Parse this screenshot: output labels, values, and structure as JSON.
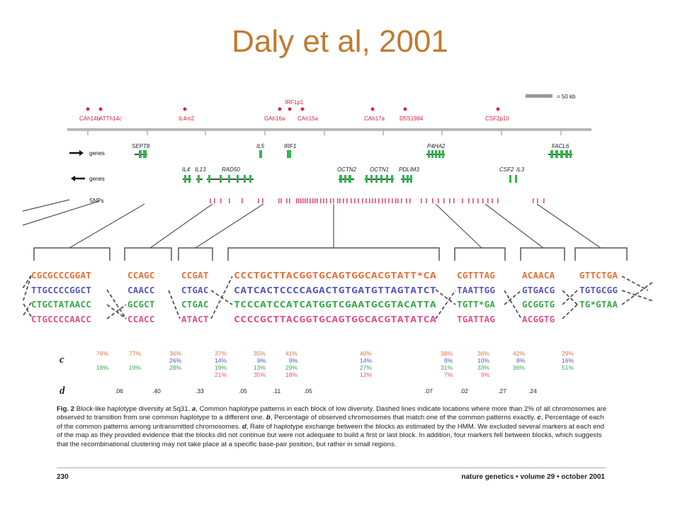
{
  "slide_title": "Daly et al, 2001",
  "scale_label": "= 50 kb",
  "markers": [
    "CAh14b",
    "ATTh14c",
    "IL4m2",
    "IRF1p1",
    "GAh16a",
    "CAh15a",
    "CAh17a",
    "D5S1984",
    "CSF2p10"
  ],
  "track_labels": {
    "forward": "genes",
    "reverse": "genes",
    "snps": "SNPs"
  },
  "forward_genes": [
    "SEPT8",
    "IL5",
    "IRF1",
    "P4HA2",
    "FACL6"
  ],
  "reverse_genes": [
    "IL4",
    "IL13",
    "RAD50",
    "OCTN2",
    "OCTN1",
    "PDLIM3",
    "CSF2",
    "IL3"
  ],
  "blocks": [
    {
      "seqs": [
        "CGCGCCCGGAT",
        "TTGCCCCGGCT",
        "CTGCTATAACC",
        "CTGCCCCAACC"
      ],
      "c": [
        "76%",
        "",
        "18%",
        ""
      ],
      "d": ".06"
    },
    {
      "seqs": [
        "CCAGC",
        "CAACC",
        "GCGCT",
        "CCACC"
      ],
      "c": [
        "77%",
        "",
        "19%",
        ""
      ],
      "d": ".40"
    },
    {
      "seqs": [
        "CCGAT",
        "CTGAC",
        "CTGAC",
        "ATACT"
      ],
      "c": [
        "36%",
        "26%",
        "28%",
        ""
      ],
      "d": ".33"
    },
    {
      "seqs": [
        "CCCTGCTTACGGTGCAGTGGCACGTATT*CA",
        "CATCACTCCCCAGACTGTGATGTTAGTATCT",
        "TCCCATCCATCATGGTCGAATGCGTACATTA",
        "CCCCGCTTACGGTGCAGTGGCACGTATATCA"
      ],
      "c": [
        "37%",
        "14%",
        "19%",
        "21%"
      ],
      "d": ".05"
    },
    {
      "seqs": [
        "CGTTTAG",
        "TAATTGG",
        "TGTT*GA",
        "TGATTAG"
      ],
      "c": [
        "35%",
        "9%",
        "13%",
        "35%"
      ],
      "d": ".11"
    },
    {
      "seqs": [
        "ACAACA",
        "GTGACG",
        "GCGGTG",
        "ACGGTG"
      ],
      "c": [
        "41%",
        "9%",
        "29%",
        "18%"
      ],
      "d": ".05"
    },
    {
      "seqs": [
        "GTTCTGA",
        "TGTGCGG",
        "TG*GTAA",
        ""
      ],
      "c": [
        "40%",
        "14%",
        "27%",
        "12%"
      ],
      "d": ".07"
    }
  ],
  "c_extra": [
    {
      "c": [
        "38%",
        "8%",
        "31%",
        "7%"
      ],
      "d": ".02"
    },
    {
      "c": [
        "36%",
        "10%",
        "33%",
        "9%"
      ],
      "d": ".27"
    },
    {
      "c": [
        "42%",
        "8%",
        "36%",
        ""
      ],
      "d": ".24"
    },
    {
      "c": [
        "29%",
        "16%",
        "51%",
        ""
      ],
      "d": ""
    }
  ],
  "row_labels": {
    "c": "c",
    "d": "d"
  },
  "caption": {
    "fig_label": "Fig. 2",
    "title": "Block-like haplotype diversity at 5q31.",
    "a_label": "a",
    "a_text": ", Common haplotype patterns in each block of low diversity. Dashed lines indicate locations where more than 2% of all chromosomes are observed to transition from one common haplotype to a different one.",
    "b_label": "b",
    "b_text": ", Percentage of observed chromosomes that match one of the common patterns exactly.",
    "c_label": "c",
    "c_text": ", Percentage of each of the common patterns among untransmitted chromosomes.",
    "d_label": "d",
    "d_text": ", Rate of haplotype exchange between the blocks as estimated by the HMM. We excluded several markers at each end of the map as they provided evidence that the blocks did not continue but were not adequate to build a first or last block. In addition, four markers fell between blocks, which suggests that the recombinational clustering may not take place at a specific base-pair position, but rather in small regions."
  },
  "footer": {
    "page": "230",
    "journal": "nature genetics • volume 29 • october 2001"
  },
  "colors": {
    "title": "#c07a30",
    "hap1": "#e8703a",
    "hap2": "#5858c0",
    "hap3": "#3aa84a",
    "hap4": "#e0508a",
    "gene": "#2db84d",
    "marker": "#d8203a"
  }
}
